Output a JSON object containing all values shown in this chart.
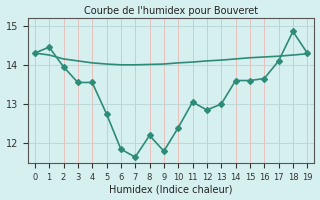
{
  "title": "Courbe de l'humidex pour Bouveret",
  "xlabel": "Humidex (Indice chaleur)",
  "ylabel": "",
  "x": [
    0,
    1,
    2,
    3,
    4,
    5,
    6,
    7,
    8,
    9,
    10,
    11,
    12,
    13,
    14,
    15,
    16,
    17,
    18,
    19
  ],
  "y_main": [
    14.3,
    14.45,
    13.95,
    13.55,
    13.55,
    12.75,
    11.85,
    11.65,
    12.2,
    11.8,
    12.4,
    13.05,
    12.85,
    13.0,
    13.6,
    13.6,
    13.65,
    14.1,
    14.85,
    14.3
  ],
  "y_trend": [
    14.3,
    14.25,
    14.15,
    14.1,
    14.05,
    14.02,
    14.0,
    14.0,
    14.01,
    14.02,
    14.05,
    14.07,
    14.1,
    14.12,
    14.15,
    14.18,
    14.2,
    14.22,
    14.25,
    14.28
  ],
  "line_color": "#2e8b77",
  "bg_color": "#d6f0ef",
  "ylim": [
    11.5,
    15.2
  ],
  "yticks": [
    12,
    13,
    14,
    15
  ],
  "marker": "D",
  "markersize": 3,
  "linewidth": 1.2
}
